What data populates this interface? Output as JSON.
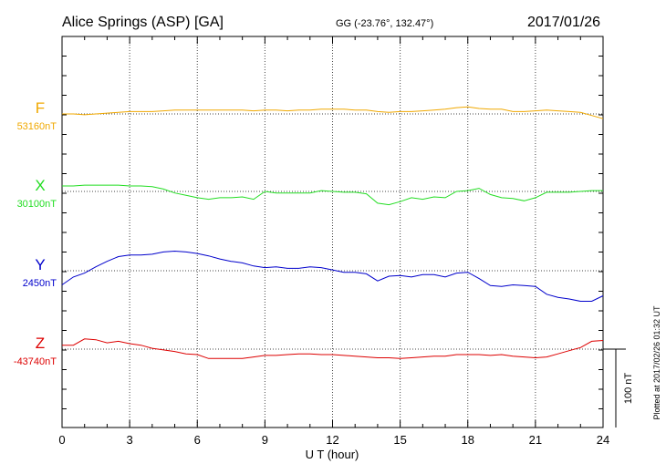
{
  "header": {
    "station": "Alice Springs (ASP)  [GA]",
    "coords": "GG (-23.76°, 132.47°)",
    "date": "2017/01/26"
  },
  "footer": {
    "plotted": "Plotted at 2017/02/26 01:32 UT"
  },
  "scale": {
    "label": "100 nT"
  },
  "chart_data": {
    "type": "line",
    "title": "Alice Springs (ASP)  [GA]",
    "xlabel": "U T (hour)",
    "xlim": [
      0,
      24
    ],
    "x_ticks": [
      0,
      3,
      6,
      9,
      12,
      15,
      18,
      21,
      24
    ],
    "grid": true,
    "scale_bar_nT": 100,
    "series": [
      {
        "name": "F",
        "baseline_label": "53160nT",
        "baseline": 53160,
        "color": "#f0a800",
        "x": [
          0,
          0.5,
          1,
          1.5,
          2,
          2.5,
          3,
          3.5,
          4,
          4.5,
          5,
          5.5,
          6,
          6.5,
          7,
          7.5,
          8,
          8.5,
          9,
          9.5,
          10,
          10.5,
          11,
          11.5,
          12,
          12.5,
          13,
          13.5,
          14,
          14.5,
          15,
          15.5,
          16,
          16.5,
          17,
          17.5,
          18,
          18.5,
          19,
          19.5,
          20,
          20.5,
          21,
          21.5,
          22,
          22.5,
          23,
          23.5,
          24
        ],
        "y": [
          53160,
          53160,
          53159,
          53160,
          53161,
          53162,
          53163,
          53163,
          53163,
          53164,
          53165,
          53165,
          53165,
          53165,
          53165,
          53165,
          53165,
          53164,
          53165,
          53165,
          53164,
          53165,
          53165,
          53166,
          53166,
          53166,
          53165,
          53165,
          53163,
          53162,
          53163,
          53163,
          53164,
          53165,
          53166,
          53168,
          53169,
          53167,
          53166,
          53166,
          53163,
          53163,
          53164,
          53165,
          53164,
          53163,
          53162,
          53158,
          53154
        ]
      },
      {
        "name": "X",
        "baseline_label": "30100nT",
        "baseline": 30100,
        "color": "#22dd22",
        "x": [
          0,
          0.5,
          1,
          1.5,
          2,
          2.5,
          3,
          3.5,
          4,
          4.5,
          5,
          5.5,
          6,
          6.5,
          7,
          7.5,
          8,
          8.5,
          9,
          9.5,
          10,
          10.5,
          11,
          11.5,
          12,
          12.5,
          13,
          13.5,
          14,
          14.5,
          15,
          15.5,
          16,
          16.5,
          17,
          17.5,
          18,
          18.5,
          19,
          19.5,
          20,
          20.5,
          21,
          21.5,
          22,
          22.5,
          23,
          23.5,
          24
        ],
        "y": [
          30107,
          30107,
          30108,
          30108,
          30108,
          30108,
          30107,
          30107,
          30106,
          30103,
          30098,
          30095,
          30092,
          30090,
          30092,
          30092,
          30093,
          30090,
          30100,
          30098,
          30098,
          30098,
          30098,
          30101,
          30100,
          30099,
          30099,
          30097,
          30085,
          30083,
          30087,
          30092,
          30090,
          30093,
          30092,
          30100,
          30101,
          30104,
          30096,
          30092,
          30091,
          30088,
          30092,
          30099,
          30099,
          30099,
          30100,
          30101,
          30101
        ]
      },
      {
        "name": "Y",
        "baseline_label": "2450nT",
        "baseline": 2450,
        "color": "#0000cc",
        "x": [
          0,
          0.5,
          1,
          1.5,
          2,
          2.5,
          3,
          3.5,
          4,
          4.5,
          5,
          5.5,
          6,
          6.5,
          7,
          7.5,
          8,
          8.5,
          9,
          9.5,
          10,
          10.5,
          11,
          11.5,
          12,
          12.5,
          13,
          13.5,
          14,
          14.5,
          15,
          15.5,
          16,
          16.5,
          17,
          17.5,
          18,
          18.5,
          19,
          19.5,
          20,
          20.5,
          21,
          21.5,
          22,
          22.5,
          23,
          23.5,
          24
        ],
        "y": [
          2432,
          2442,
          2447,
          2455,
          2462,
          2468,
          2470,
          2470,
          2471,
          2474,
          2475,
          2474,
          2472,
          2469,
          2465,
          2462,
          2460,
          2456,
          2454,
          2455,
          2453,
          2453,
          2455,
          2454,
          2451,
          2448,
          2448,
          2446,
          2437,
          2443,
          2444,
          2442,
          2445,
          2445,
          2442,
          2447,
          2448,
          2440,
          2431,
          2430,
          2432,
          2431,
          2430,
          2420,
          2416,
          2414,
          2411,
          2411,
          2418
        ]
      },
      {
        "name": "Z",
        "baseline_label": "-43740nT",
        "baseline": -43740,
        "color": "#dd0000",
        "x": [
          0,
          0.5,
          1,
          1.5,
          2,
          2.5,
          3,
          3.5,
          4,
          4.5,
          5,
          5.5,
          6,
          6.5,
          7,
          7.5,
          8,
          8.5,
          9,
          9.5,
          10,
          10.5,
          11,
          11.5,
          12,
          12.5,
          13,
          13.5,
          14,
          14.5,
          15,
          15.5,
          16,
          16.5,
          17,
          17.5,
          18,
          18.5,
          19,
          19.5,
          20,
          20.5,
          21,
          21.5,
          22,
          22.5,
          23,
          23.5,
          24
        ],
        "y": [
          -43735,
          -43735,
          -43727,
          -43728,
          -43732,
          -43730,
          -43733,
          -43735,
          -43739,
          -43741,
          -43743,
          -43746,
          -43747,
          -43752,
          -43752,
          -43752,
          -43752,
          -43750,
          -43748,
          -43748,
          -43747,
          -43746,
          -43746,
          -43747,
          -43747,
          -43748,
          -43749,
          -43750,
          -43751,
          -43751,
          -43752,
          -43751,
          -43750,
          -43749,
          -43749,
          -43747,
          -43747,
          -43747,
          -43748,
          -43747,
          -43749,
          -43750,
          -43751,
          -43750,
          -43746,
          -43742,
          -43738,
          -43730,
          -43729
        ]
      }
    ]
  }
}
